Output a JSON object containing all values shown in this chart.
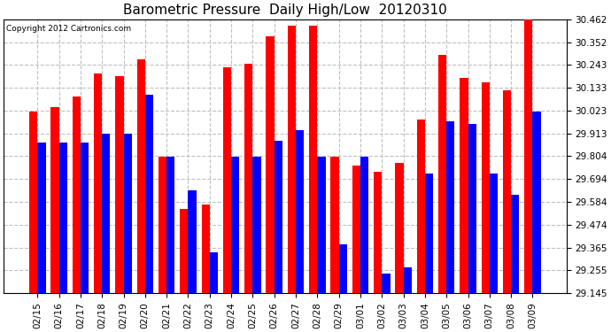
{
  "title": "Barometric Pressure  Daily High/Low  20120310",
  "copyright": "Copyright 2012 Cartronics.com",
  "dates": [
    "02/15",
    "02/16",
    "02/17",
    "02/18",
    "02/19",
    "02/20",
    "02/21",
    "02/22",
    "02/23",
    "02/24",
    "02/25",
    "02/26",
    "02/27",
    "02/28",
    "02/29",
    "03/01",
    "03/02",
    "03/03",
    "03/04",
    "03/05",
    "03/06",
    "03/07",
    "03/08",
    "03/09"
  ],
  "highs": [
    30.02,
    30.04,
    30.09,
    30.2,
    30.19,
    30.27,
    29.8,
    29.55,
    29.57,
    30.23,
    30.25,
    30.38,
    30.43,
    30.43,
    29.8,
    29.76,
    29.73,
    29.77,
    29.98,
    30.29,
    30.18,
    30.16,
    30.12,
    30.46
  ],
  "lows": [
    29.87,
    29.87,
    29.87,
    29.91,
    29.91,
    30.1,
    29.8,
    29.64,
    29.34,
    29.8,
    29.8,
    29.88,
    29.93,
    29.8,
    29.38,
    29.8,
    29.24,
    29.27,
    29.72,
    29.97,
    29.96,
    29.72,
    29.62,
    30.02
  ],
  "ylim_min": 29.145,
  "ylim_max": 30.462,
  "yticks": [
    29.145,
    29.255,
    29.365,
    29.474,
    29.584,
    29.694,
    29.804,
    29.913,
    30.023,
    30.133,
    30.243,
    30.352,
    30.462
  ],
  "bar_width": 0.38,
  "high_color": "#ff0000",
  "low_color": "#0000ff",
  "bg_color": "#ffffff",
  "grid_color": "#c0c0c0",
  "title_fontsize": 11,
  "tick_fontsize": 7.5
}
